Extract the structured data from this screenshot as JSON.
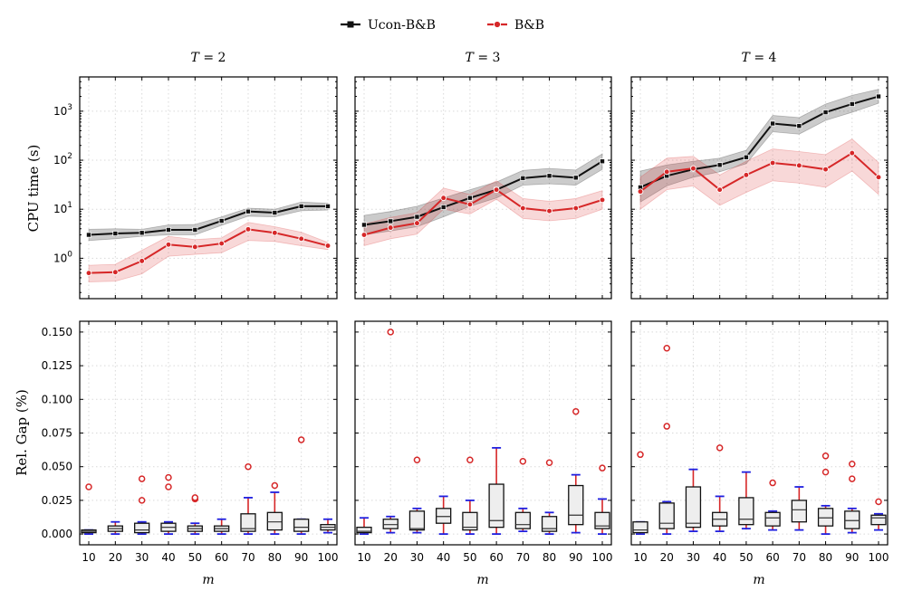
{
  "legend": {
    "entries": [
      {
        "name": "Ucon-B&B",
        "color": "#111111",
        "marker": "square"
      },
      {
        "name": "B&B",
        "color": "#d62728",
        "marker": "circle"
      }
    ]
  },
  "xlabel": "m",
  "chart_data": [
    {
      "type": "line",
      "id": "cpu_T2",
      "title": "T = 2",
      "title_var": "T",
      "title_val": "2",
      "ylabel": "CPU time (s)",
      "yscale": "log",
      "ylim": [
        0.15,
        5000
      ],
      "x": [
        10,
        20,
        30,
        40,
        50,
        60,
        70,
        80,
        90,
        100
      ],
      "series": [
        {
          "name": "Ucon-B&B",
          "color": "#111111",
          "values": [
            3.0,
            3.2,
            3.3,
            3.8,
            3.8,
            5.8,
            9.0,
            8.5,
            11.5,
            11.5
          ],
          "lower": [
            2.3,
            2.5,
            2.8,
            3.0,
            3.0,
            4.7,
            7.2,
            7.0,
            9.3,
            9.6
          ],
          "upper": [
            3.9,
            4.0,
            3.9,
            4.8,
            4.9,
            7.0,
            10.5,
            10.0,
            14.0,
            13.2
          ]
        },
        {
          "name": "B&B",
          "color": "#d62728",
          "values": [
            0.5,
            0.52,
            0.88,
            1.9,
            1.7,
            2.0,
            3.9,
            3.3,
            2.5,
            1.8
          ],
          "lower": [
            0.33,
            0.34,
            0.48,
            1.1,
            1.2,
            1.3,
            2.3,
            2.2,
            1.8,
            1.5
          ],
          "upper": [
            0.72,
            0.75,
            1.45,
            2.8,
            2.4,
            2.6,
            5.4,
            4.4,
            3.4,
            2.1
          ]
        }
      ]
    },
    {
      "type": "line",
      "id": "cpu_T3",
      "title": "T = 3",
      "title_var": "T",
      "title_val": "3",
      "yscale": "log",
      "ylim": [
        0.15,
        5000
      ],
      "x": [
        10,
        20,
        30,
        40,
        50,
        60,
        70,
        80,
        90,
        100
      ],
      "series": [
        {
          "name": "Ucon-B&B",
          "color": "#111111",
          "values": [
            4.8,
            5.7,
            7.0,
            11.0,
            17.0,
            25.0,
            43.0,
            48.0,
            44.0,
            95.0
          ],
          "lower": [
            3.0,
            3.6,
            4.4,
            7.0,
            11.5,
            17.0,
            31.0,
            33.0,
            31.0,
            65.0
          ],
          "upper": [
            7.5,
            9.0,
            11.5,
            17.0,
            25.0,
            36.0,
            62.0,
            68.0,
            63.0,
            135.0
          ]
        },
        {
          "name": "B&B",
          "color": "#d62728",
          "values": [
            3.0,
            4.2,
            5.2,
            17.0,
            12.5,
            25.0,
            10.5,
            9.2,
            10.5,
            15.5
          ],
          "lower": [
            1.8,
            2.5,
            3.1,
            10.0,
            8.0,
            16.0,
            6.5,
            5.8,
            6.5,
            10.0
          ],
          "upper": [
            5.0,
            6.8,
            8.5,
            27.0,
            20.0,
            38.0,
            16.5,
            14.5,
            16.5,
            24.0
          ]
        }
      ]
    },
    {
      "type": "line",
      "id": "cpu_T4",
      "title": "T = 4",
      "title_var": "T",
      "title_val": "4",
      "yscale": "log",
      "ylim": [
        0.15,
        5000
      ],
      "x": [
        10,
        20,
        30,
        40,
        50,
        60,
        70,
        80,
        90,
        100
      ],
      "series": [
        {
          "name": "Ucon-B&B",
          "color": "#111111",
          "values": [
            28.0,
            48.0,
            65.0,
            80.0,
            115.0,
            560.0,
            500.0,
            950.0,
            1400.0,
            2000.0
          ],
          "lower": [
            14.0,
            30.0,
            45.0,
            58.0,
            85.0,
            380.0,
            340.0,
            650.0,
            950.0,
            1450.0
          ],
          "upper": [
            60.0,
            80.0,
            95.0,
            110.0,
            160.0,
            820.0,
            740.0,
            1400.0,
            2100.0,
            2800.0
          ]
        },
        {
          "name": "B&B",
          "color": "#d62728",
          "values": [
            23.0,
            58.0,
            68.0,
            25.0,
            50.0,
            88.0,
            78.0,
            65.0,
            140.0,
            45.0
          ],
          "lower": [
            10.0,
            25.0,
            30.0,
            12.0,
            22.0,
            38.0,
            34.0,
            28.0,
            60.0,
            20.0
          ],
          "upper": [
            45.0,
            110.0,
            120.0,
            50.0,
            95.0,
            170.0,
            150.0,
            130.0,
            270.0,
            90.0
          ]
        }
      ]
    },
    {
      "type": "box",
      "id": "gap_T2",
      "ylabel": "Rel. Gap (%)",
      "ylim": [
        -0.008,
        0.158
      ],
      "yticks": [
        0.0,
        0.025,
        0.05,
        0.075,
        0.1,
        0.125,
        0.15
      ],
      "ytick_labels": [
        "0.000",
        "0.025",
        "0.050",
        "0.075",
        "0.100",
        "0.125",
        "0.150"
      ],
      "x": [
        10,
        20,
        30,
        40,
        50,
        60,
        70,
        80,
        90,
        100
      ],
      "boxes": [
        {
          "min": 0.0,
          "q1": 0.001,
          "median": 0.002,
          "q3": 0.003,
          "max": 0.003,
          "outliers": [
            0.035
          ]
        },
        {
          "min": 0.0,
          "q1": 0.002,
          "median": 0.004,
          "q3": 0.006,
          "max": 0.009,
          "outliers": []
        },
        {
          "min": 0.0,
          "q1": 0.001,
          "median": 0.003,
          "q3": 0.008,
          "max": 0.009,
          "outliers": [
            0.025,
            0.041
          ]
        },
        {
          "min": 0.0,
          "q1": 0.002,
          "median": 0.005,
          "q3": 0.008,
          "max": 0.009,
          "outliers": [
            0.035,
            0.042
          ]
        },
        {
          "min": 0.0,
          "q1": 0.002,
          "median": 0.004,
          "q3": 0.006,
          "max": 0.008,
          "outliers": [
            0.026,
            0.027
          ]
        },
        {
          "min": 0.0,
          "q1": 0.002,
          "median": 0.004,
          "q3": 0.006,
          "max": 0.011,
          "outliers": []
        },
        {
          "min": 0.0,
          "q1": 0.002,
          "median": 0.004,
          "q3": 0.015,
          "max": 0.027,
          "outliers": [
            0.05
          ]
        },
        {
          "min": 0.0,
          "q1": 0.003,
          "median": 0.009,
          "q3": 0.016,
          "max": 0.031,
          "outliers": [
            0.036
          ]
        },
        {
          "min": 0.0,
          "q1": 0.002,
          "median": 0.005,
          "q3": 0.011,
          "max": 0.011,
          "outliers": [
            0.07
          ]
        },
        {
          "min": 0.001,
          "q1": 0.003,
          "median": 0.005,
          "q3": 0.007,
          "max": 0.011,
          "outliers": []
        }
      ]
    },
    {
      "type": "box",
      "id": "gap_T3",
      "ylim": [
        -0.008,
        0.158
      ],
      "yticks": [
        0.0,
        0.025,
        0.05,
        0.075,
        0.1,
        0.125,
        0.15
      ],
      "x": [
        10,
        20,
        30,
        40,
        50,
        60,
        70,
        80,
        90,
        100
      ],
      "boxes": [
        {
          "min": 0.0,
          "q1": 0.001,
          "median": 0.002,
          "q3": 0.005,
          "max": 0.012,
          "outliers": []
        },
        {
          "min": 0.001,
          "q1": 0.004,
          "median": 0.007,
          "q3": 0.011,
          "max": 0.013,
          "outliers": [
            0.15
          ]
        },
        {
          "min": 0.001,
          "q1": 0.003,
          "median": 0.004,
          "q3": 0.017,
          "max": 0.019,
          "outliers": [
            0.055
          ]
        },
        {
          "min": 0.0,
          "q1": 0.008,
          "median": 0.013,
          "q3": 0.019,
          "max": 0.028,
          "outliers": []
        },
        {
          "min": 0.0,
          "q1": 0.003,
          "median": 0.005,
          "q3": 0.016,
          "max": 0.025,
          "outliers": [
            0.055
          ]
        },
        {
          "min": 0.0,
          "q1": 0.005,
          "median": 0.01,
          "q3": 0.037,
          "max": 0.064,
          "outliers": []
        },
        {
          "min": 0.002,
          "q1": 0.004,
          "median": 0.007,
          "q3": 0.016,
          "max": 0.019,
          "outliers": [
            0.054
          ]
        },
        {
          "min": 0.0,
          "q1": 0.002,
          "median": 0.004,
          "q3": 0.013,
          "max": 0.016,
          "outliers": [
            0.053
          ]
        },
        {
          "min": 0.001,
          "q1": 0.007,
          "median": 0.014,
          "q3": 0.036,
          "max": 0.044,
          "outliers": [
            0.091
          ]
        },
        {
          "min": 0.0,
          "q1": 0.004,
          "median": 0.006,
          "q3": 0.016,
          "max": 0.026,
          "outliers": [
            0.049
          ]
        }
      ]
    },
    {
      "type": "box",
      "id": "gap_T4",
      "ylim": [
        -0.008,
        0.158
      ],
      "yticks": [
        0.0,
        0.025,
        0.05,
        0.075,
        0.1,
        0.125,
        0.15
      ],
      "x": [
        10,
        20,
        30,
        40,
        50,
        60,
        70,
        80,
        90,
        100
      ],
      "boxes": [
        {
          "min": 0.0,
          "q1": 0.001,
          "median": 0.003,
          "q3": 0.009,
          "max": 0.009,
          "outliers": [
            0.059
          ]
        },
        {
          "min": 0.0,
          "q1": 0.004,
          "median": 0.008,
          "q3": 0.023,
          "max": 0.024,
          "outliers": [
            0.08,
            0.138
          ]
        },
        {
          "min": 0.002,
          "q1": 0.005,
          "median": 0.008,
          "q3": 0.035,
          "max": 0.048,
          "outliers": []
        },
        {
          "min": 0.002,
          "q1": 0.006,
          "median": 0.011,
          "q3": 0.016,
          "max": 0.028,
          "outliers": [
            0.064
          ]
        },
        {
          "min": 0.004,
          "q1": 0.007,
          "median": 0.011,
          "q3": 0.027,
          "max": 0.046,
          "outliers": []
        },
        {
          "min": 0.003,
          "q1": 0.006,
          "median": 0.012,
          "q3": 0.016,
          "max": 0.017,
          "outliers": [
            0.038
          ]
        },
        {
          "min": 0.003,
          "q1": 0.009,
          "median": 0.018,
          "q3": 0.025,
          "max": 0.035,
          "outliers": []
        },
        {
          "min": 0.0,
          "q1": 0.006,
          "median": 0.012,
          "q3": 0.019,
          "max": 0.021,
          "outliers": [
            0.046,
            0.058
          ]
        },
        {
          "min": 0.001,
          "q1": 0.004,
          "median": 0.01,
          "q3": 0.017,
          "max": 0.019,
          "outliers": [
            0.041,
            0.052
          ]
        },
        {
          "min": 0.003,
          "q1": 0.007,
          "median": 0.012,
          "q3": 0.014,
          "max": 0.015,
          "outliers": [
            0.024
          ]
        }
      ]
    }
  ]
}
